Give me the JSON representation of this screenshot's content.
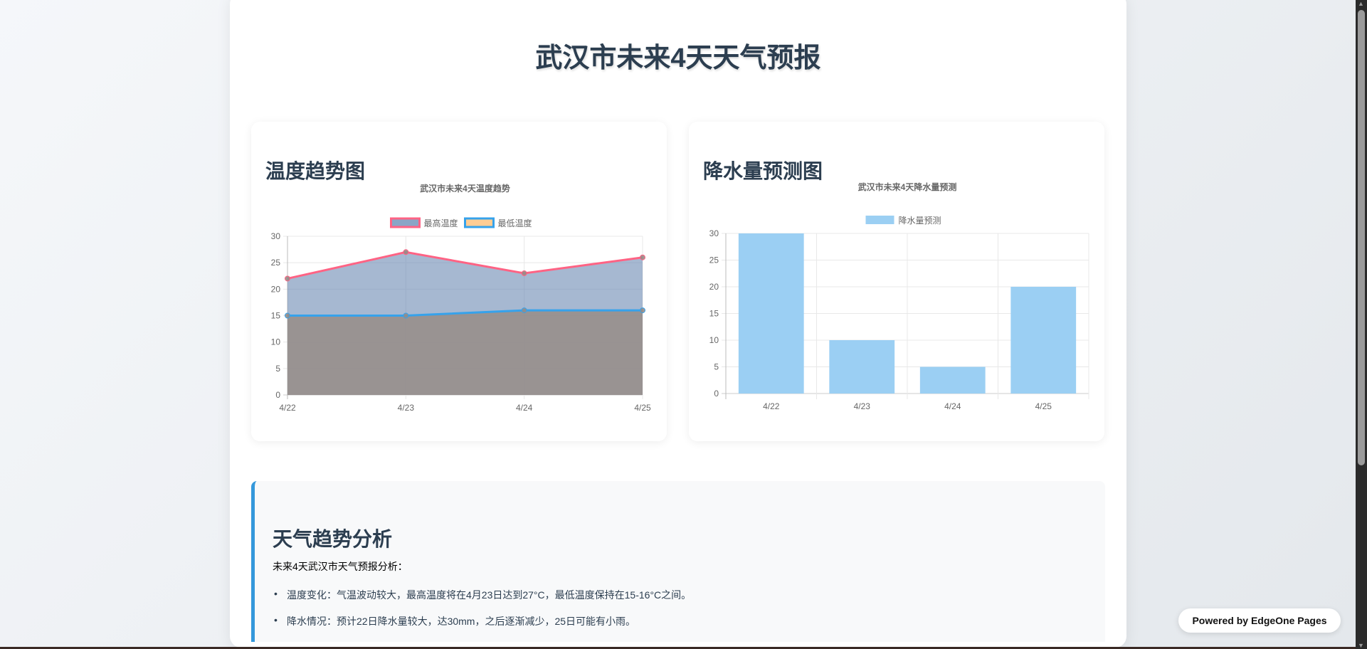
{
  "page": {
    "title": "武汉市未来4天天气预报"
  },
  "temp_card": {
    "heading": "温度趋势图"
  },
  "rain_card": {
    "heading": "降水量预测图"
  },
  "chart_data": [
    {
      "type": "area",
      "title": "武汉市未来4天温度趋势",
      "categories": [
        "4/22",
        "4/23",
        "4/24",
        "4/25"
      ],
      "series": [
        {
          "name": "最高温度",
          "values": [
            22,
            27,
            23,
            26
          ],
          "border": "#ff6384",
          "fill": "#8aa5c6"
        },
        {
          "name": "最低温度",
          "values": [
            15,
            15,
            16,
            16
          ],
          "border": "#36a2eb",
          "fill": "#ffcd94"
        }
      ],
      "ylim": [
        0,
        30
      ],
      "yticks": [
        0,
        5,
        10,
        15,
        20,
        25,
        30
      ],
      "grid": true,
      "legend": "top"
    },
    {
      "type": "bar",
      "title": "武汉市未来4天降水量预测",
      "categories": [
        "4/22",
        "4/23",
        "4/24",
        "4/25"
      ],
      "series": [
        {
          "name": "降水量预测",
          "values": [
            30,
            10,
            5,
            20
          ],
          "fill": "#9bcff3"
        }
      ],
      "ylim": [
        0,
        30
      ],
      "yticks": [
        0,
        5,
        10,
        15,
        20,
        25,
        30
      ],
      "grid": true,
      "legend": "top"
    }
  ],
  "analysis": {
    "heading": "天气趋势分析",
    "intro": "未来4天武汉市天气预报分析：",
    "items": [
      "温度变化：气温波动较大，最高温度将在4月23日达到27°C，最低温度保持在15-16°C之间。",
      "降水情况：预计22日降水量较大，达30mm，之后逐渐减少，25日可能有小雨。"
    ]
  },
  "badge": {
    "label": "Powered by EdgeOne Pages"
  }
}
